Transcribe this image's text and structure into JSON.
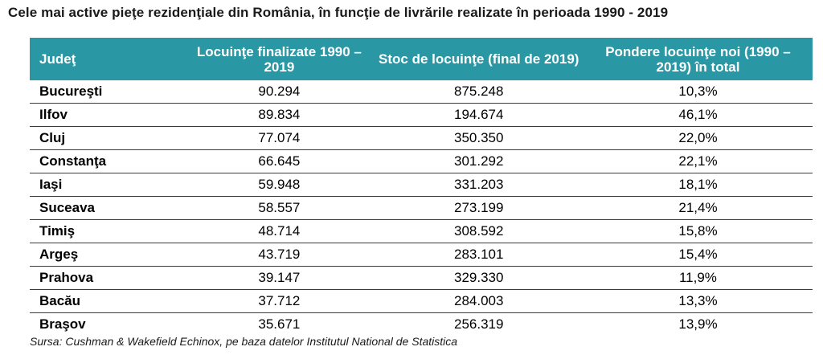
{
  "title": "Cele mai active pieţe rezidenţiale din România, în funcţie de livrările realizate în perioada 1990 - 2019",
  "table": {
    "headers": {
      "judet": "Judeţ",
      "finalizate": "Locuinţe finalizate 1990 – 2019",
      "stoc": "Stoc de locuinţe (final de 2019)",
      "pondere": "Pondere locuinţe noi (1990 – 2019) în total"
    },
    "rows": [
      {
        "judet": "Bucureşti",
        "finalizate": "90.294",
        "stoc": "875.248",
        "pondere": "10,3%"
      },
      {
        "judet": "Ilfov",
        "finalizate": "89.834",
        "stoc": "194.674",
        "pondere": "46,1%"
      },
      {
        "judet": "Cluj",
        "finalizate": "77.074",
        "stoc": "350.350",
        "pondere": "22,0%"
      },
      {
        "judet": "Constanţa",
        "finalizate": "66.645",
        "stoc": "301.292",
        "pondere": "22,1%"
      },
      {
        "judet": "Iaşi",
        "finalizate": "59.948",
        "stoc": "331.203",
        "pondere": "18,1%"
      },
      {
        "judet": "Suceava",
        "finalizate": "58.557",
        "stoc": "273.199",
        "pondere": "21,4%"
      },
      {
        "judet": "Timiş",
        "finalizate": "48.714",
        "stoc": "308.592",
        "pondere": "15,8%"
      },
      {
        "judet": "Argeş",
        "finalizate": "43.719",
        "stoc": "283.101",
        "pondere": "15,4%"
      },
      {
        "judet": "Prahova",
        "finalizate": "39.147",
        "stoc": "329.330",
        "pondere": "11,9%"
      },
      {
        "judet": "Bacău",
        "finalizate": "37.712",
        "stoc": "284.003",
        "pondere": "13,3%"
      },
      {
        "judet": "Braşov",
        "finalizate": "35.671",
        "stoc": "256.319",
        "pondere": "13,9%"
      }
    ]
  },
  "source": "Sursa: Cushman & Wakefield Echinox, pe baza datelor Institutul National de Statistica",
  "colors": {
    "header_bg": "#2a97a4",
    "header_text": "#ffffff",
    "row_border": "#3b3b3b"
  }
}
